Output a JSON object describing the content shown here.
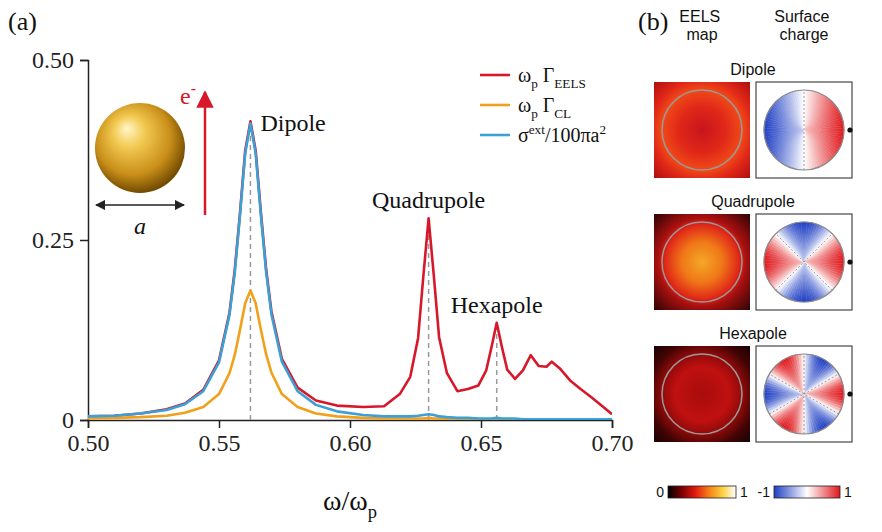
{
  "chart_data": {
    "type": "line",
    "panel_label": "(a)",
    "x_label": "ω/ωp",
    "x": [
      0.5,
      0.51,
      0.52,
      0.53,
      0.537,
      0.544,
      0.55,
      0.554,
      0.556,
      0.558,
      0.56,
      0.562,
      0.564,
      0.566,
      0.568,
      0.57,
      0.574,
      0.58,
      0.587,
      0.595,
      0.605,
      0.613,
      0.619,
      0.623,
      0.626,
      0.628,
      0.63,
      0.632,
      0.634,
      0.637,
      0.641,
      0.645,
      0.649,
      0.652,
      0.654,
      0.656,
      0.658,
      0.66,
      0.663,
      0.666,
      0.669,
      0.672,
      0.675,
      0.677,
      0.68,
      0.684,
      0.688,
      0.692,
      0.696,
      0.7
    ],
    "series": [
      {
        "name": "ωp ΓEELS",
        "color": "#d7182a",
        "values": [
          0.005,
          0.006,
          0.009,
          0.015,
          0.023,
          0.042,
          0.083,
          0.149,
          0.208,
          0.287,
          0.374,
          0.415,
          0.374,
          0.288,
          0.209,
          0.151,
          0.085,
          0.045,
          0.027,
          0.02,
          0.018,
          0.019,
          0.036,
          0.06,
          0.114,
          0.2,
          0.28,
          0.2,
          0.115,
          0.065,
          0.04,
          0.043,
          0.048,
          0.069,
          0.101,
          0.135,
          0.101,
          0.07,
          0.057,
          0.069,
          0.09,
          0.075,
          0.074,
          0.081,
          0.072,
          0.055,
          0.043,
          0.032,
          0.02,
          0.008
        ]
      },
      {
        "name": "ωp ΓCL",
        "color": "#f2a01c",
        "values": [
          0.002,
          0.003,
          0.004,
          0.006,
          0.01,
          0.018,
          0.036,
          0.065,
          0.09,
          0.125,
          0.162,
          0.18,
          0.162,
          0.125,
          0.091,
          0.066,
          0.036,
          0.018,
          0.009,
          0.005,
          0.003,
          0.002,
          0.002,
          0.002,
          0.002,
          0.002,
          0.003,
          0.002,
          0.002,
          0.001,
          0.001,
          0.001,
          0.001,
          0.001,
          0.001,
          0.001,
          0.001,
          0.001,
          0.001,
          0.001,
          0.001,
          0.001,
          0.001,
          0.001,
          0.001,
          0.001,
          0.001,
          0.001,
          0.001,
          0.001
        ]
      },
      {
        "name": "σext/100πa2",
        "color": "#3aa0d5",
        "values": [
          0.005,
          0.006,
          0.009,
          0.014,
          0.022,
          0.04,
          0.08,
          0.146,
          0.204,
          0.284,
          0.37,
          0.412,
          0.37,
          0.284,
          0.205,
          0.147,
          0.081,
          0.04,
          0.021,
          0.012,
          0.007,
          0.005,
          0.005,
          0.005,
          0.006,
          0.007,
          0.008,
          0.007,
          0.005,
          0.004,
          0.003,
          0.003,
          0.002,
          0.002,
          0.002,
          0.003,
          0.002,
          0.002,
          0.002,
          0.001,
          0.001,
          0.001,
          0.001,
          0.001,
          0.001,
          0.001,
          0.001,
          0.001,
          0.001,
          0.001
        ]
      }
    ],
    "xlim": [
      0.5,
      0.7
    ],
    "xticks": [
      {
        "value": 0.5,
        "label": "0.50"
      },
      {
        "value": 0.55,
        "label": "0.55"
      },
      {
        "value": 0.6,
        "label": "0.60"
      },
      {
        "value": 0.65,
        "label": "0.65"
      },
      {
        "value": 0.7,
        "label": "0.70"
      }
    ],
    "ylim": [
      0,
      0.5
    ],
    "yticks": [
      0,
      0.25,
      {
        "value": 0.5,
        "label": "0.50"
      }
    ],
    "legend": "upper right",
    "annotations": [
      {
        "text": "Dipole",
        "x": 0.562
      },
      {
        "text": "Quadrupole",
        "x": 0.63
      },
      {
        "text": "Hexapole",
        "x": 0.656
      }
    ],
    "inset": {
      "electron_label": "e-",
      "size_label": "a"
    }
  },
  "panel_b": {
    "panel_label": "(b)",
    "columns": [
      "EELS map",
      "Surface charge"
    ],
    "rows": [
      "Dipole",
      "Quadrupole",
      "Hexapole"
    ],
    "eels_colorbar": {
      "range": [
        0,
        1
      ],
      "ticks": [
        0,
        1
      ]
    },
    "charge_colorbar": {
      "range": [
        -1,
        1
      ],
      "ticks": [
        -1,
        1
      ]
    }
  }
}
